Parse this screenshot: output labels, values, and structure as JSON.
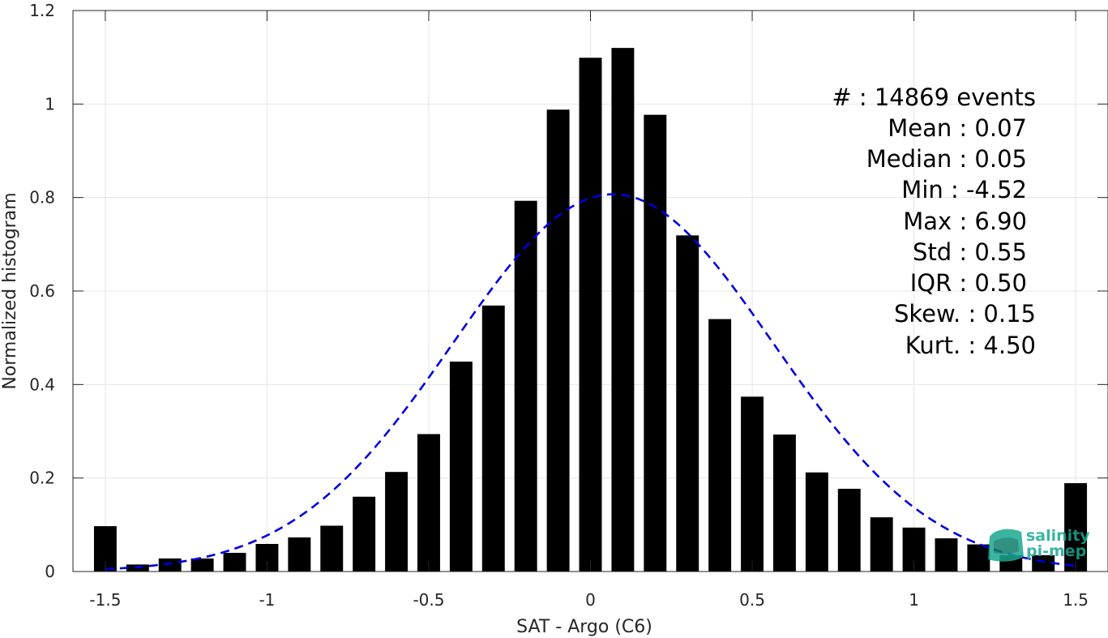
{
  "chart_data": {
    "type": "bar",
    "xlabel": "SAT - Argo (C6)",
    "ylabel": "Normalized histogram",
    "xlim": [
      -1.6,
      1.6
    ],
    "ylim": [
      0,
      1.2
    ],
    "xticks": [
      -1.5,
      -1,
      -0.5,
      0,
      0.5,
      1,
      1.5
    ],
    "xtick_labels": [
      "-1.5",
      "-1",
      "-0.5",
      "0",
      "0.5",
      "1",
      "1.5"
    ],
    "yticks": [
      0,
      0.2,
      0.4,
      0.6,
      0.8,
      1,
      1.2
    ],
    "ytick_labels": [
      "0",
      "0.2",
      "0.4",
      "0.6",
      "0.8",
      "1",
      "1.2"
    ],
    "grid": true,
    "bar_width": 0.07,
    "x": [
      -1.5,
      -1.4,
      -1.3,
      -1.2,
      -1.1,
      -1.0,
      -0.9,
      -0.8,
      -0.7,
      -0.6,
      -0.5,
      -0.4,
      -0.3,
      -0.2,
      -0.1,
      0.0,
      0.1,
      0.2,
      0.3,
      0.4,
      0.5,
      0.6,
      0.7,
      0.8,
      0.9,
      1.0,
      1.1,
      1.2,
      1.3,
      1.4,
      1.5
    ],
    "values": [
      0.097,
      0.015,
      0.028,
      0.028,
      0.04,
      0.059,
      0.073,
      0.098,
      0.16,
      0.213,
      0.294,
      0.449,
      0.569,
      0.793,
      0.988,
      1.099,
      1.12,
      0.977,
      0.719,
      0.54,
      0.374,
      0.293,
      0.212,
      0.177,
      0.116,
      0.094,
      0.071,
      0.058,
      0.035,
      0.035,
      0.189
    ],
    "bar_color": "#000000",
    "fit": {
      "type": "line",
      "style": "dashed",
      "color": "#0000e0",
      "mean": 0.07,
      "std": 0.494,
      "peak": 0.807,
      "x_range": [
        -1.5,
        1.5
      ]
    },
    "stats": [
      "#  : 14869 events",
      "Mean : 0.07",
      "Median : 0.05",
      "Min : -4.52",
      "Max : 6.90",
      "Std : 0.55",
      "IQR : 0.50",
      "Skew. : 0.15",
      "Kurt. : 4.50"
    ]
  },
  "logo": {
    "line1": "salinity",
    "line2": "pi-mep",
    "color": "#1aa890"
  }
}
